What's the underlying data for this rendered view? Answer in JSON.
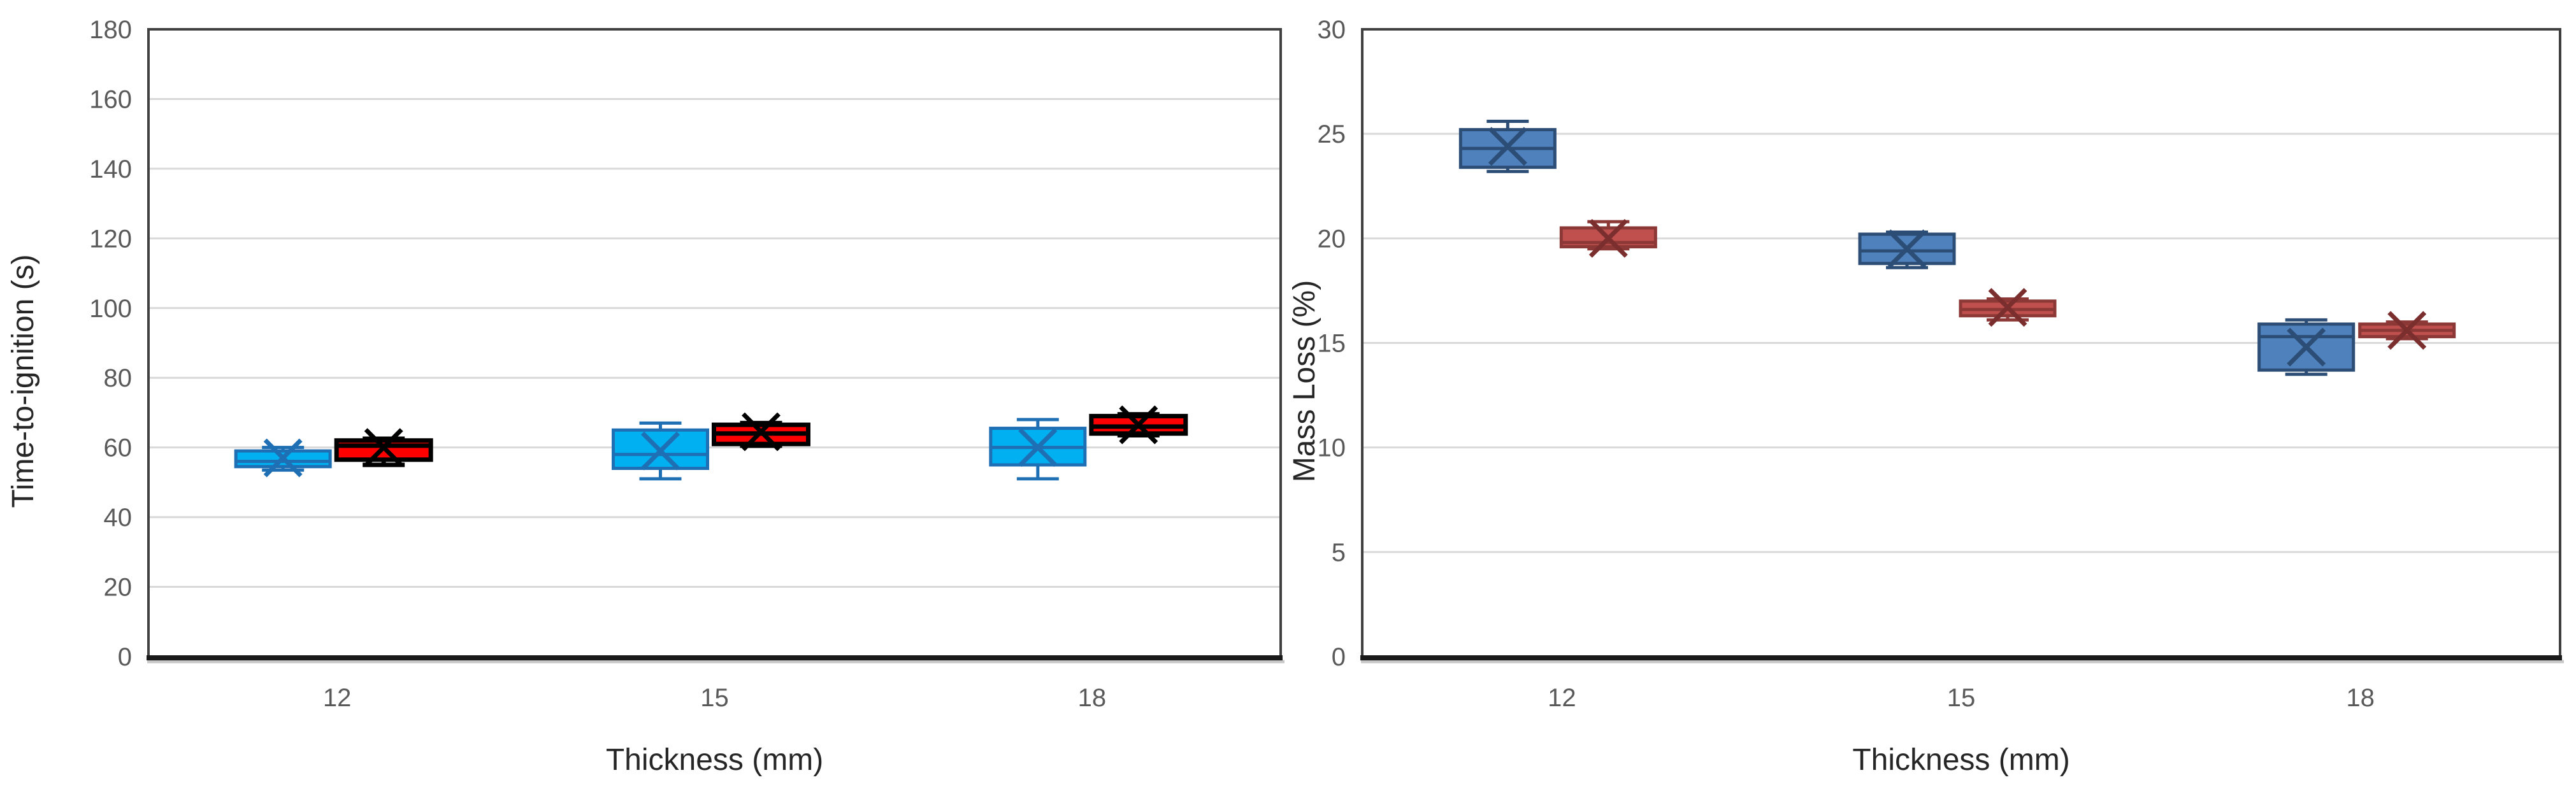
{
  "page": {
    "background": "#FFFFFF"
  },
  "style": {
    "gridline_color": "#D9D9D9",
    "plot_border_color": "#404040",
    "axis_line_color": "#1A1A1A",
    "axis_shadow_color": "#C8C8C8",
    "tick_label_color": "#595959",
    "axis_title_color": "#262626"
  },
  "chart_data": [
    {
      "type": "boxplot",
      "title": "",
      "xlabel": "Thickness (mm)",
      "ylabel": "Time-to-ignition  (s)",
      "categories": [
        "12",
        "15",
        "18"
      ],
      "ylim": [
        0,
        180
      ],
      "yticks": [
        0,
        20,
        40,
        60,
        80,
        100,
        120,
        140,
        160,
        180
      ],
      "grid": true,
      "legend_position": "none",
      "series": [
        {
          "key": "cyan-boxes",
          "fill": "#00B0F0",
          "stroke": "#1F6FB5",
          "marker_color": "#1F6FB5",
          "boxes": [
            {
              "category": "12",
              "low": 53.5,
              "q1": 54.5,
              "median": 56,
              "q3": 59,
              "high": 60,
              "mean": 57
            },
            {
              "category": "15",
              "low": 51,
              "q1": 54,
              "median": 58,
              "q3": 65,
              "high": 67,
              "mean": 59
            },
            {
              "category": "18",
              "low": 51,
              "q1": 55,
              "median": 60,
              "q3": 65.5,
              "high": 68,
              "mean": 60
            }
          ]
        },
        {
          "key": "red-boxes",
          "fill": "#FF0000",
          "stroke": "#000000",
          "marker_color": "#000000",
          "boxes": [
            {
              "category": "12",
              "low": 55,
              "q1": 56.5,
              "median": 60.5,
              "q3": 62,
              "high": 62.5,
              "mean": 60
            },
            {
              "category": "15",
              "low": 60.5,
              "q1": 61,
              "median": 64,
              "q3": 66.5,
              "high": 67,
              "mean": 64.5
            },
            {
              "category": "18",
              "low": 63.5,
              "q1": 64,
              "median": 66,
              "q3": 69,
              "high": 69.5,
              "mean": 66.5
            }
          ]
        }
      ]
    },
    {
      "type": "boxplot",
      "title": "",
      "xlabel": "Thickness (mm)",
      "ylabel": "Mass Loss (%)",
      "categories": [
        "12",
        "15",
        "18"
      ],
      "ylim": [
        0,
        30
      ],
      "yticks": [
        0,
        5,
        10,
        15,
        20,
        25,
        30
      ],
      "grid": true,
      "legend_position": "none",
      "series": [
        {
          "key": "blue-boxes",
          "fill": "#4F81BD",
          "stroke": "#2C4D75",
          "marker_color": "#2C4D75",
          "boxes": [
            {
              "category": "12",
              "low": 23.2,
              "q1": 23.4,
              "median": 24.3,
              "q3": 25.2,
              "high": 25.6,
              "mean": 24.4
            },
            {
              "category": "15",
              "low": 18.6,
              "q1": 18.8,
              "median": 19.4,
              "q3": 20.2,
              "high": 20.3,
              "mean": 19.5
            },
            {
              "category": "18",
              "low": 13.5,
              "q1": 13.7,
              "median": 15.3,
              "q3": 15.9,
              "high": 16.1,
              "mean": 14.8
            }
          ]
        },
        {
          "key": "darkred-boxes",
          "fill": "#C0504D",
          "stroke": "#8C3836",
          "marker_color": "#7B2E2E",
          "boxes": [
            {
              "category": "12",
              "low": 19.5,
              "q1": 19.6,
              "median": 19.8,
              "q3": 20.5,
              "high": 20.8,
              "mean": 20.0
            },
            {
              "category": "15",
              "low": 16.1,
              "q1": 16.3,
              "median": 16.6,
              "q3": 17.0,
              "high": 17.1,
              "mean": 16.7
            },
            {
              "category": "18",
              "low": 15.2,
              "q1": 15.3,
              "median": 15.6,
              "q3": 15.9,
              "high": 16.0,
              "mean": 15.6
            }
          ]
        }
      ]
    }
  ]
}
